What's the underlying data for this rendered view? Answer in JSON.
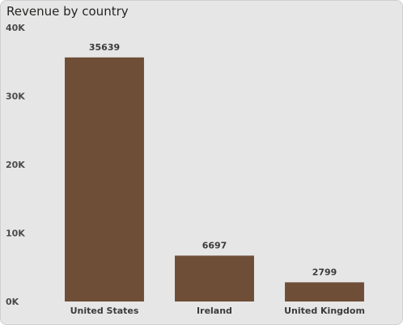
{
  "chart_data": {
    "type": "bar",
    "title": "Revenue by country",
    "xlabel": "",
    "ylabel": "",
    "categories": [
      "United States",
      "Ireland",
      "United Kingdom"
    ],
    "values": [
      35639,
      6697,
      2799
    ],
    "ylim": [
      0,
      40000
    ],
    "yticks": [
      0,
      10000,
      20000,
      30000,
      40000
    ],
    "ytick_labels": [
      "0K",
      "10K",
      "20K",
      "30K",
      "40K"
    ],
    "bar_color": "#6f4e37",
    "grid": false,
    "legend": "none"
  }
}
